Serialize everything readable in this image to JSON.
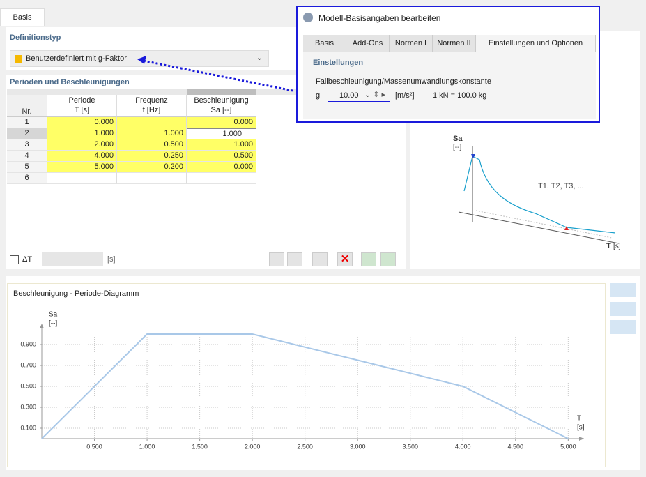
{
  "tab": "Basis",
  "definition": {
    "heading": "Definitionstyp",
    "value": "Benutzerdefiniert mit g-Faktor"
  },
  "table": {
    "heading": "Perioden und Beschleunigungen",
    "columns": [
      [
        "Nr."
      ],
      [
        "Periode",
        "T [s]"
      ],
      [
        "Frequenz",
        "f [Hz]"
      ],
      [
        "Beschleunigung",
        "Sa [--]"
      ]
    ],
    "rows": [
      [
        "1",
        "0.000",
        null,
        "0.000"
      ],
      [
        "2",
        "1.000",
        "1.000",
        "1.000"
      ],
      [
        "3",
        "2.000",
        "0.500",
        "1.000"
      ],
      [
        "4",
        "4.000",
        "0.250",
        "0.500"
      ],
      [
        "5",
        "5.000",
        "0.200",
        "0.000"
      ],
      [
        "6",
        null,
        null,
        null
      ]
    ]
  },
  "delta": {
    "label": "ΔT",
    "unit": "[s]"
  },
  "dialog": {
    "title": "Modell-Basisangaben bearbeiten",
    "tabs": [
      "Basis",
      "Add-Ons",
      "Normen I",
      "Normen II",
      "Einstellungen und Optionen"
    ],
    "section": "Einstellungen",
    "field_label": "Fallbeschleunigung/Massenumwandlungskonstante",
    "symbol": "g",
    "value": "10.00",
    "unit": "[m/s²]",
    "conversion": "1 kN = 100.0 kg"
  },
  "schematic": {
    "y_label": "Sa",
    "y_unit": "[--]",
    "periods": "T1, T2, T3, ...",
    "x_label": "T",
    "x_unit": "[s]"
  },
  "chart_data": {
    "type": "line",
    "title": "Beschleunigung - Periode-Diagramm",
    "y_label": "Sa",
    "y_unit": "[--]",
    "x_label": "T",
    "x_unit": "[s]",
    "x": [
      0,
      1,
      2,
      4,
      5
    ],
    "series": [
      {
        "name": "Sa",
        "color": "#a9c8e8",
        "values": [
          0,
          1,
          1,
          0.5,
          0
        ]
      }
    ],
    "xlim": [
      0,
      5.15
    ],
    "ylim": [
      0,
      1.1
    ],
    "xticks": [
      {
        "value": 0.5,
        "label": "0.500"
      },
      {
        "value": 1,
        "label": "1.000"
      },
      {
        "value": 1.5,
        "label": "1.500"
      },
      {
        "value": 2,
        "label": "2.000"
      },
      {
        "value": 2.5,
        "label": "2.500"
      },
      {
        "value": 3,
        "label": "3.000"
      },
      {
        "value": 3.5,
        "label": "3.500"
      },
      {
        "value": 4,
        "label": "4.000"
      },
      {
        "value": 4.5,
        "label": "4.500"
      },
      {
        "value": 5,
        "label": "5.000"
      }
    ],
    "yticks": [
      {
        "value": 0.1,
        "label": "0.100"
      },
      {
        "value": 0.3,
        "label": "0.300"
      },
      {
        "value": 0.5,
        "label": "0.500"
      },
      {
        "value": 0.7,
        "label": "0.700"
      },
      {
        "value": 0.9,
        "label": "0.900"
      }
    ],
    "grid": true
  }
}
